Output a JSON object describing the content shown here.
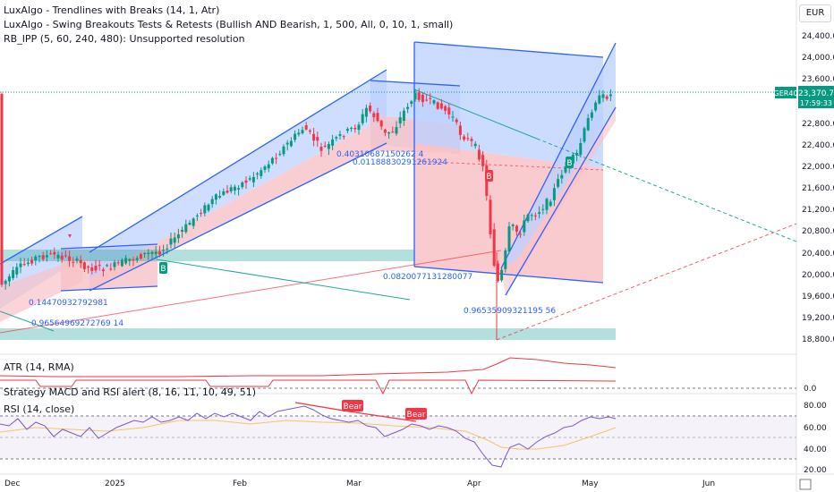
{
  "legend": {
    "line1": "LuxAlgo - Trendlines with Breaks (14, 1, Atr)",
    "line2": "LuxAlgo - Swing Breakouts Tests & Retests (Bullish AND Bearish, 1, 500, All, 0, 10, 1, small)",
    "line3": "RB_IPP (5, 60, 240, 480): Unsupported resolution"
  },
  "currency": "EUR",
  "symbol_tag": "GER40",
  "price_tag": "23,370.7",
  "countdown": "17:59:33",
  "price_axis": [
    "24,400.0",
    "24,000.0",
    "23,600.0",
    "22,800.0",
    "22,400.0",
    "22,000.0",
    "21,600.0",
    "21,200.0",
    "20,800.0",
    "20,400.0",
    "20,000.0",
    "19,600.0",
    "19,200.0",
    "18,800.0"
  ],
  "time_axis": [
    "Dec",
    "2025",
    "Feb",
    "Mar",
    "Apr",
    "May",
    "Jun"
  ],
  "annotations": {
    "a1": "0.14470932792981",
    "a2": "0.96564969272769 14",
    "a3": "0.40310687150262 4",
    "a4": "0.01188830291261924",
    "a5": "0.0820077131280077",
    "a6": "0.96535909321195 56"
  },
  "signals": {
    "b1": "B",
    "b2": "B",
    "b3": "B",
    "bear1": "Bear",
    "bear2": "Bear"
  },
  "atr": {
    "label": "ATR (14, RMA)"
  },
  "strategy": {
    "label": "Strategy MACD and RSI alert (8, 16, 11, 10, 49, 51)",
    "tick": "0.0"
  },
  "rsi": {
    "label": "RSI (14, close)",
    "ticks": [
      "80.00",
      "60.00",
      "40.00",
      "20.00"
    ]
  },
  "colors": {
    "bull": "#089981",
    "bear": "#f23645",
    "channel": "#2962ff",
    "zone": "#26a69a",
    "fill_blue": "#bbd0ff",
    "fill_red": "#f8c2c7"
  }
}
